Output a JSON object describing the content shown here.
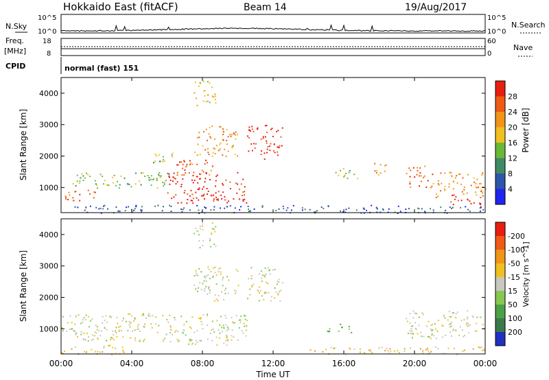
{
  "header": {
    "station": "Hokkaido East (fitACF)",
    "beam": "Beam 14",
    "date": "19/Aug/2017"
  },
  "panels": {
    "nsky": {
      "label": "N.Sky",
      "ticks": [
        "10^5",
        "10^0"
      ],
      "right_label": "N.Search",
      "right_ticks": [
        "10^5",
        "10^0"
      ]
    },
    "freq": {
      "label_line1": "Freq.",
      "label_line2": "[MHz]",
      "ticks": [
        "18",
        "8"
      ],
      "right_label": "Nave",
      "right_ticks": [
        "60",
        "0"
      ]
    },
    "cpid": {
      "label": "CPID",
      "value": "normal (fast) 151"
    }
  },
  "chart_data": [
    {
      "type": "heatmap",
      "title": "",
      "xlabel": "Time UT",
      "ylabel": "Slant Range [km]",
      "xlim": [
        "00:00",
        "24:00"
      ],
      "ylim": [
        200,
        4500
      ],
      "x_ticks": [
        "00:00",
        "04:00",
        "08:00",
        "12:00",
        "16:00",
        "20:00",
        "00:00"
      ],
      "y_ticks": [
        1000,
        2000,
        3000,
        4000
      ],
      "colorbar": {
        "label": "Power [dB]",
        "ticks": [
          4,
          8,
          12,
          16,
          20,
          24,
          28
        ]
      },
      "colors": [
        "#1f24f0",
        "#2e56a8",
        "#3f8a64",
        "#6ab838",
        "#f0c020",
        "#f29418",
        "#f05a14",
        "#e81e10"
      ],
      "regions": [
        {
          "t": [
            0.0,
            2.0
          ],
          "r": [
            600,
            950
          ],
          "level": 6
        },
        {
          "t": [
            0.5,
            6.0
          ],
          "r": [
            1000,
            1500
          ],
          "level": 3
        },
        {
          "t": [
            6.0,
            10.5
          ],
          "r": [
            500,
            1500
          ],
          "level": 7
        },
        {
          "t": [
            6.5,
            9.0
          ],
          "r": [
            1400,
            1900
          ],
          "level": 6
        },
        {
          "t": [
            7.5,
            10.0
          ],
          "r": [
            2000,
            3000
          ],
          "level": 5
        },
        {
          "t": [
            10.5,
            12.5
          ],
          "r": [
            1900,
            3000
          ],
          "level": 7
        },
        {
          "t": [
            7.5,
            8.8
          ],
          "r": [
            3600,
            4400
          ],
          "level": 4
        },
        {
          "t": [
            5.0,
            6.5
          ],
          "r": [
            1800,
            2200
          ],
          "level": 3
        },
        {
          "t": [
            15.5,
            16.8
          ],
          "r": [
            1300,
            1700
          ],
          "level": 3
        },
        {
          "t": [
            17.5,
            18.5
          ],
          "r": [
            1400,
            1800
          ],
          "level": 5
        },
        {
          "t": [
            19.5,
            21.0
          ],
          "r": [
            1000,
            1700
          ],
          "level": 6
        },
        {
          "t": [
            21.0,
            24.0
          ],
          "r": [
            700,
            1500
          ],
          "level": 5
        },
        {
          "t": [
            22.0,
            23.8
          ],
          "r": [
            400,
            800
          ],
          "level": 7
        },
        {
          "t": [
            0.0,
            24.0
          ],
          "r": [
            200,
            450
          ],
          "level": 1
        }
      ]
    },
    {
      "type": "heatmap",
      "title": "",
      "xlabel": "Time UT",
      "ylabel": "Slant Range [km]",
      "xlim": [
        "00:00",
        "24:00"
      ],
      "ylim": [
        200,
        4500
      ],
      "x_ticks": [
        "00:00",
        "04:00",
        "08:00",
        "12:00",
        "16:00",
        "20:00",
        "00:00"
      ],
      "y_ticks": [
        1000,
        2000,
        3000,
        4000
      ],
      "colorbar": {
        "label": "Velocity [m s^-1]",
        "ticks": [
          200,
          100,
          50,
          15,
          -15,
          -50,
          -100,
          -200
        ]
      },
      "colors": [
        "#2030c0",
        "#3a7a4a",
        "#4ca048",
        "#86c850",
        "#c8c8c0",
        "#f0c020",
        "#f29418",
        "#f05a14",
        "#e81e10"
      ],
      "regions": [
        {
          "t": [
            0.0,
            6.0
          ],
          "r": [
            600,
            1500
          ],
          "level": 4
        },
        {
          "t": [
            6.0,
            10.5
          ],
          "r": [
            500,
            1500
          ],
          "level": 4
        },
        {
          "t": [
            7.5,
            10.0
          ],
          "r": [
            1900,
            3000
          ],
          "level": 4
        },
        {
          "t": [
            10.5,
            12.5
          ],
          "r": [
            1900,
            3000
          ],
          "level": 4
        },
        {
          "t": [
            7.5,
            8.8
          ],
          "r": [
            3600,
            4400
          ],
          "level": 4
        },
        {
          "t": [
            15.0,
            16.5
          ],
          "r": [
            900,
            1200
          ],
          "level": 2
        },
        {
          "t": [
            19.5,
            24.0
          ],
          "r": [
            700,
            1600
          ],
          "level": 4
        },
        {
          "t": [
            0.0,
            4.0
          ],
          "r": [
            200,
            500
          ],
          "level": 5
        },
        {
          "t": [
            14.0,
            24.0
          ],
          "r": [
            200,
            450
          ],
          "level": 5
        }
      ]
    }
  ]
}
